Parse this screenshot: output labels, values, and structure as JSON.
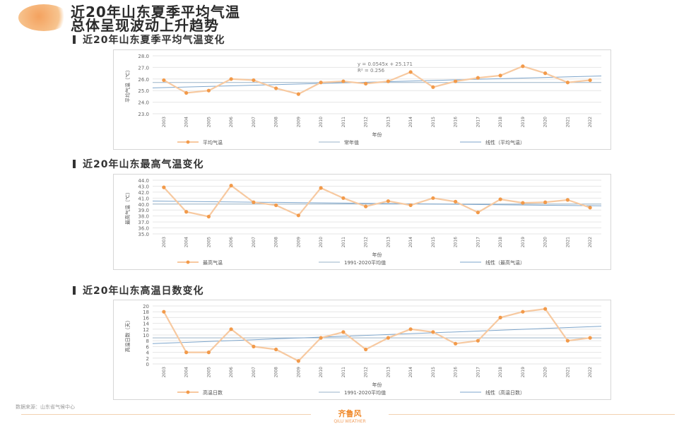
{
  "header": {
    "title_line1": "近20年山东夏季平均气温",
    "title_line2": "总体呈现波动上升趋势"
  },
  "colors": {
    "series": "#f29a4a",
    "series_line": "#f7c9a0",
    "average": "#9ab3c8",
    "trend": "#7ea6cc",
    "grid": "#e6e6e6"
  },
  "footer": {
    "source": "数据来源：山东省气候中心",
    "brand": "齐鲁风",
    "brand_sub": "QILU WEATHER"
  },
  "chart_data": [
    {
      "type": "line",
      "section_title": "近20年山东夏季平均气温变化",
      "ylabel": "平均气温（℃）",
      "xlabel": "年份",
      "x": [
        "2003",
        "2004",
        "2005",
        "2006",
        "2007",
        "2008",
        "2009",
        "2010",
        "2011",
        "2012",
        "2013",
        "2014",
        "2015",
        "2016",
        "2017",
        "2018",
        "2019",
        "2020",
        "2021",
        "2022"
      ],
      "ylim": [
        23.0,
        28.0
      ],
      "yticks": [
        "23.0",
        "24.0",
        "25.0",
        "26.0",
        "27.0",
        "28.0"
      ],
      "grid": true,
      "annotation_lines": [
        "y = 0.0545x + 25.171",
        "R² = 0.256"
      ],
      "series": [
        {
          "name": "平均气温",
          "role": "data",
          "values": [
            25.9,
            24.8,
            25.0,
            26.0,
            25.9,
            25.2,
            24.7,
            25.7,
            25.8,
            25.6,
            25.8,
            26.6,
            25.3,
            25.8,
            26.1,
            26.3,
            27.1,
            26.5,
            25.7,
            25.9
          ]
        },
        {
          "name": "常年值",
          "role": "average",
          "value": 25.7
        },
        {
          "name": "线性（平均气温）",
          "role": "trend",
          "from": 25.23,
          "to": 26.26
        }
      ],
      "legend_position": "bottom"
    },
    {
      "type": "line",
      "section_title": "近20年山东最高气温变化",
      "ylabel": "最高气温（℃）",
      "xlabel": "年份",
      "x": [
        "2003",
        "2004",
        "2005",
        "2006",
        "2007",
        "2008",
        "2009",
        "2010",
        "2011",
        "2012",
        "2013",
        "2014",
        "2015",
        "2016",
        "2017",
        "2018",
        "2019",
        "2020",
        "2021",
        "2022"
      ],
      "ylim": [
        35.0,
        44.0
      ],
      "yticks": [
        "35.0",
        "36.0",
        "37.0",
        "38.0",
        "39.0",
        "40.0",
        "41.0",
        "42.0",
        "43.0",
        "44.0"
      ],
      "grid": true,
      "series": [
        {
          "name": "最高气温",
          "role": "data",
          "values": [
            42.8,
            38.7,
            37.9,
            43.1,
            40.3,
            39.8,
            38.1,
            42.7,
            41.0,
            39.6,
            40.5,
            39.8,
            41.0,
            40.4,
            38.6,
            40.8,
            40.2,
            40.3,
            40.7,
            39.4
          ]
        },
        {
          "name": "1991-2020平均值",
          "role": "average",
          "value": 40.0
        },
        {
          "name": "线性（最高气温）",
          "role": "trend",
          "from": 40.5,
          "to": 39.7
        }
      ],
      "legend_position": "bottom"
    },
    {
      "type": "line",
      "section_title": "近20年山东高温日数变化",
      "ylabel": "高温日数（天）",
      "xlabel": "年份",
      "x": [
        "2003",
        "2004",
        "2005",
        "2006",
        "2007",
        "2008",
        "2009",
        "2010",
        "2011",
        "2012",
        "2013",
        "2014",
        "2015",
        "2016",
        "2017",
        "2018",
        "2019",
        "2020",
        "2021",
        "2022"
      ],
      "ylim": [
        0,
        20
      ],
      "yticks": [
        "0",
        "2",
        "4",
        "6",
        "8",
        "10",
        "12",
        "14",
        "16",
        "18",
        "20"
      ],
      "grid": true,
      "series": [
        {
          "name": "高温日数",
          "role": "data",
          "values": [
            18,
            4,
            4,
            12,
            6,
            5,
            1,
            9,
            11,
            5,
            9,
            12,
            11,
            7,
            8,
            16,
            18,
            19,
            8,
            9
          ]
        },
        {
          "name": "1991-2020平均值",
          "role": "average",
          "value": 9
        },
        {
          "name": "线性（高温日数）",
          "role": "trend",
          "from": 7,
          "to": 13
        }
      ],
      "legend_position": "bottom"
    }
  ]
}
